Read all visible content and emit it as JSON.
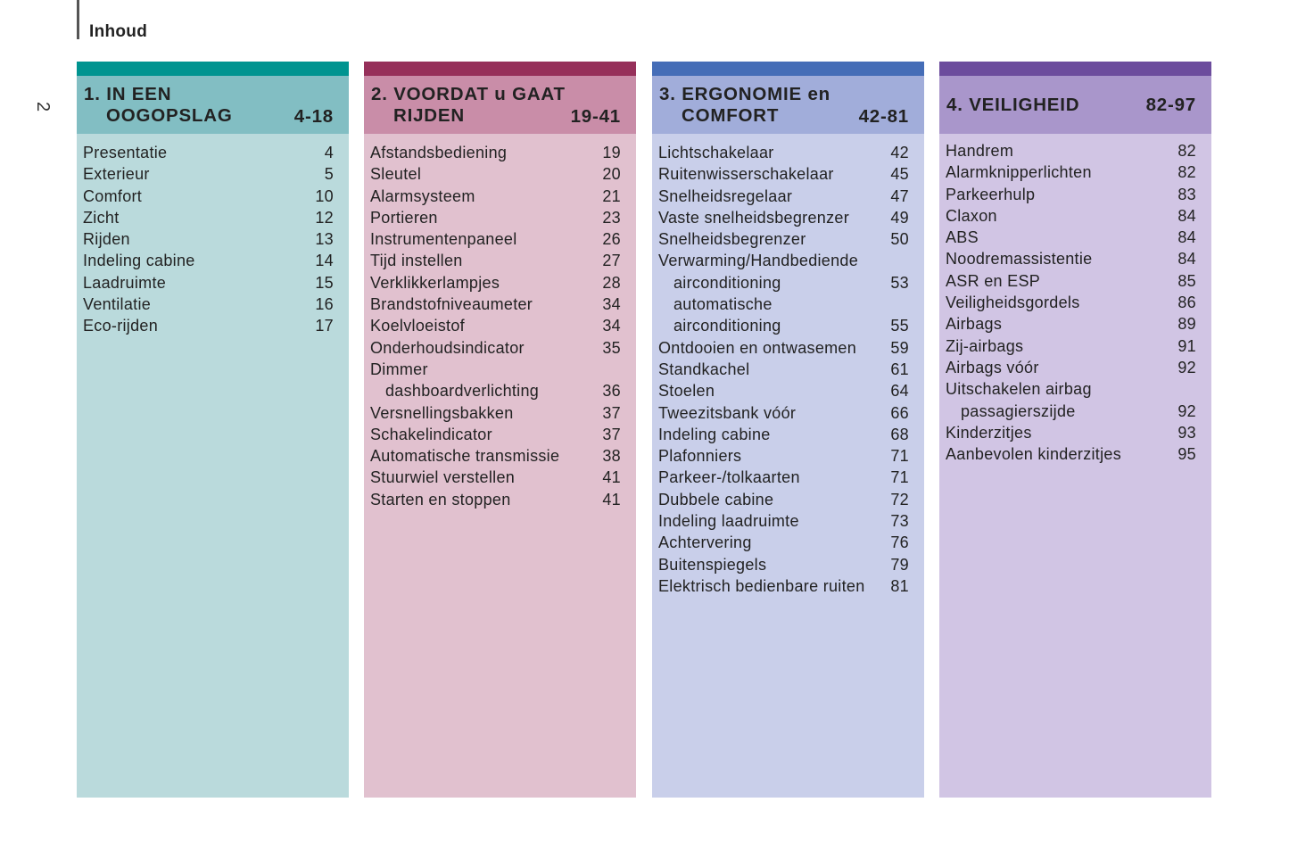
{
  "header": {
    "title": "Inhoud",
    "page_number": "2"
  },
  "columns": [
    {
      "id": "c1",
      "title_line1": "1. IN EEN",
      "title_line2": "OOGOPSLAG",
      "range": "4-18",
      "colors": {
        "bar": "#009490",
        "head": "#82BEC3",
        "body": "#BADADC"
      },
      "entries": [
        {
          "text": "Presentatie",
          "page": "4"
        },
        {
          "text": "Exterieur",
          "page": "5"
        },
        {
          "text": "Comfort",
          "page": "10"
        },
        {
          "text": "Zicht",
          "page": "12"
        },
        {
          "text": "Rijden",
          "page": "13"
        },
        {
          "text": "Indeling cabine",
          "page": "14"
        },
        {
          "text": "Laadruimte",
          "page": "15"
        },
        {
          "text": "Ventilatie",
          "page": "16"
        },
        {
          "text": "Eco-rijden",
          "page": "17"
        }
      ]
    },
    {
      "id": "c2",
      "title_line1": "2. VOORDAT u GAAT",
      "title_line2": "RIJDEN",
      "range": "19-41",
      "colors": {
        "bar": "#96305A",
        "head": "#C98DA8",
        "body": "#E1C1CF"
      },
      "entries": [
        {
          "text": "Afstandsbediening",
          "page": "19"
        },
        {
          "text": "Sleutel",
          "page": "20"
        },
        {
          "text": "Alarmsysteem",
          "page": "21"
        },
        {
          "text": "Portieren",
          "page": "23"
        },
        {
          "text": "Instrumentenpaneel",
          "page": "26"
        },
        {
          "text": "Tijd instellen",
          "page": "27"
        },
        {
          "text": "Verklikkerlampjes",
          "page": "28"
        },
        {
          "text": "Brandstofniveaumeter",
          "page": "34"
        },
        {
          "text": "Koelvloeistof",
          "page": "34"
        },
        {
          "text": "Onderhoudsindicator",
          "page": "35"
        },
        {
          "text": "Dimmer",
          "page": ""
        },
        {
          "text": "dashboardverlichting",
          "page": "36",
          "indent": true
        },
        {
          "text": "Versnellingsbakken",
          "page": "37"
        },
        {
          "text": "Schakelindicator",
          "page": "37"
        },
        {
          "text": "Automatische transmissie",
          "page": "38"
        },
        {
          "text": "Stuurwiel verstellen",
          "page": "41"
        },
        {
          "text": "Starten en stoppen",
          "page": "41"
        }
      ]
    },
    {
      "id": "c3",
      "title_line1": "3. ERGONOMIE en",
      "title_line2": "COMFORT",
      "range": "42-81",
      "colors": {
        "bar": "#456DB7",
        "head": "#A1ADDA",
        "body": "#C9CFEA"
      },
      "entries": [
        {
          "text": "Lichtschakelaar",
          "page": "42"
        },
        {
          "text": "Ruitenwisserschakelaar",
          "page": "45"
        },
        {
          "text": "Snelheidsregelaar",
          "page": "47"
        },
        {
          "text": "Vaste snelheidsbegrenzer",
          "page": "49"
        },
        {
          "text": "Snelheidsbegrenzer",
          "page": "50"
        },
        {
          "text": "Verwarming/Handbediende",
          "page": ""
        },
        {
          "text": "airconditioning",
          "page": "53",
          "indent": true
        },
        {
          "text": "automatische",
          "page": "",
          "indent": true
        },
        {
          "text": "airconditioning",
          "page": "55",
          "indent": true
        },
        {
          "text": "Ontdooien en ontwasemen",
          "page": "59"
        },
        {
          "text": "Standkachel",
          "page": "61"
        },
        {
          "text": "Stoelen",
          "page": "64"
        },
        {
          "text": "Tweezitsbank vóór",
          "page": "66"
        },
        {
          "text": "Indeling cabine",
          "page": "68"
        },
        {
          "text": "Plafonniers",
          "page": "71"
        },
        {
          "text": "Parkeer-/tolkaarten",
          "page": "71"
        },
        {
          "text": "Dubbele cabine",
          "page": "72"
        },
        {
          "text": "Indeling laadruimte",
          "page": "73"
        },
        {
          "text": "Achtervering",
          "page": "76"
        },
        {
          "text": "Buitenspiegels",
          "page": "79"
        },
        {
          "text": "Elektrisch bedienbare ruiten",
          "page": "81"
        }
      ]
    },
    {
      "id": "c4",
      "title_line1": "4. VEILIGHEID",
      "title_line2": "",
      "range": "82-97",
      "colors": {
        "bar": "#6C4C9D",
        "head": "#A996CB",
        "body": "#D1C5E4"
      },
      "entries": [
        {
          "text": "Handrem",
          "page": "82"
        },
        {
          "text": "Alarmknipperlichten",
          "page": "82"
        },
        {
          "text": "Parkeerhulp",
          "page": "83"
        },
        {
          "text": "Claxon",
          "page": "84"
        },
        {
          "text": "ABS",
          "page": "84"
        },
        {
          "text": "Noodremassistentie",
          "page": "84"
        },
        {
          "text": "ASR en ESP",
          "page": "85"
        },
        {
          "text": "Veiligheidsgordels",
          "page": "86"
        },
        {
          "text": "Airbags",
          "page": "89"
        },
        {
          "text": "Zij-airbags",
          "page": "91"
        },
        {
          "text": "Airbags vóór",
          "page": "92"
        },
        {
          "text": "Uitschakelen airbag",
          "page": ""
        },
        {
          "text": "passagierszijde",
          "page": "92",
          "indent": true
        },
        {
          "text": "Kinderzitjes",
          "page": "93"
        },
        {
          "text": "Aanbevolen kinderzitjes",
          "page": "95"
        }
      ]
    }
  ]
}
